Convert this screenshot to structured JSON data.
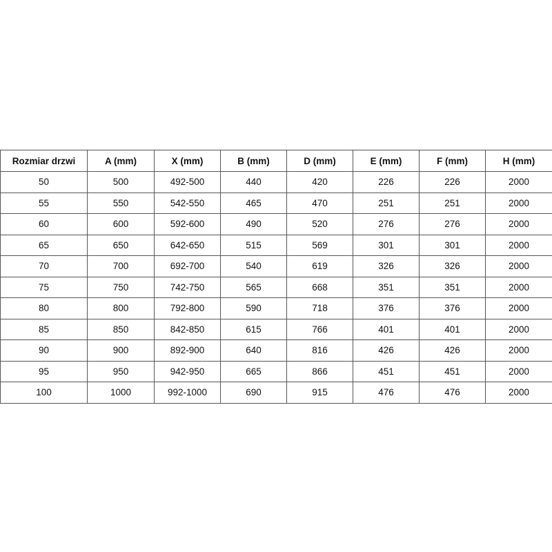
{
  "table": {
    "headers": [
      "Rozmiar drzwi",
      "A (mm)",
      "X (mm)",
      "B (mm)",
      "D (mm)",
      "E (mm)",
      "F (mm)",
      "H (mm)"
    ],
    "rows": [
      [
        "50",
        "500",
        "492-500",
        "440",
        "420",
        "226",
        "226",
        "2000"
      ],
      [
        "55",
        "550",
        "542-550",
        "465",
        "470",
        "251",
        "251",
        "2000"
      ],
      [
        "60",
        "600",
        "592-600",
        "490",
        "520",
        "276",
        "276",
        "2000"
      ],
      [
        "65",
        "650",
        "642-650",
        "515",
        "569",
        "301",
        "301",
        "2000"
      ],
      [
        "70",
        "700",
        "692-700",
        "540",
        "619",
        "326",
        "326",
        "2000"
      ],
      [
        "75",
        "750",
        "742-750",
        "565",
        "668",
        "351",
        "351",
        "2000"
      ],
      [
        "80",
        "800",
        "792-800",
        "590",
        "718",
        "376",
        "376",
        "2000"
      ],
      [
        "85",
        "850",
        "842-850",
        "615",
        "766",
        "401",
        "401",
        "2000"
      ],
      [
        "90",
        "900",
        "892-900",
        "640",
        "816",
        "426",
        "426",
        "2000"
      ],
      [
        "95",
        "950",
        "942-950",
        "665",
        "866",
        "451",
        "451",
        "2000"
      ],
      [
        "100",
        "1000",
        "992-1000",
        "690",
        "915",
        "476",
        "476",
        "2000"
      ]
    ]
  }
}
